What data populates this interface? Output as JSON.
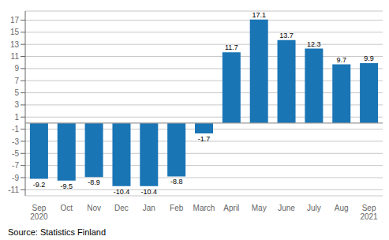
{
  "chart_data": {
    "type": "bar",
    "categories": [
      "Sep\n2020",
      "Oct",
      "Nov",
      "Dec",
      "Jan",
      "Feb",
      "March",
      "April",
      "May",
      "June",
      "July",
      "Aug",
      "Sep\n2021"
    ],
    "values": [
      -9.2,
      -9.5,
      -8.9,
      -10.4,
      -10.4,
      -8.8,
      -1.7,
      11.7,
      17.1,
      13.7,
      12.3,
      9.7,
      9.9
    ],
    "color": "#1a75b5",
    "ylim": [
      -12,
      18.5
    ],
    "yticks": [
      -11,
      -9,
      -7,
      -5,
      -3,
      -1,
      1,
      3,
      5,
      7,
      9,
      11,
      13,
      15,
      17
    ],
    "grid": true,
    "data_labels": true,
    "annotations": [
      "Source: Statistics Finland"
    ]
  }
}
